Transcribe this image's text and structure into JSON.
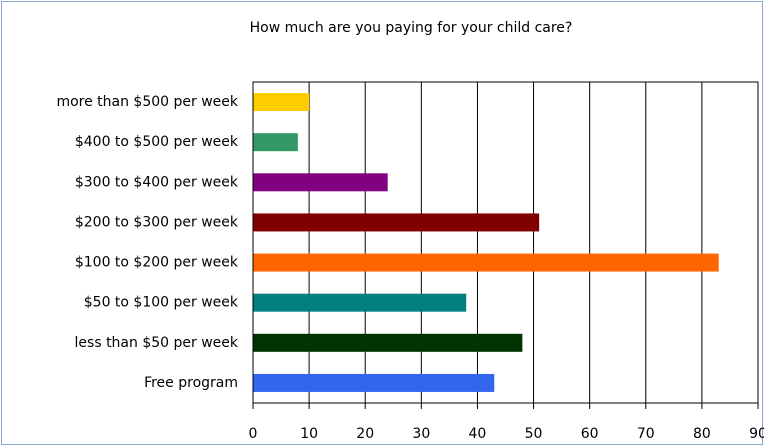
{
  "chart_data": {
    "type": "bar",
    "orientation": "horizontal",
    "title": "How much are you paying for your child care?",
    "categories": [
      "Free program",
      "less than $50 per week",
      "$50 to $100 per week",
      "$100 to $200 per week",
      "$200 to $300 per week",
      "$300 to $400 per week",
      "$400 to $500 per week",
      "more than $500 per week"
    ],
    "values": [
      43,
      48,
      38,
      83,
      51,
      24,
      8,
      10
    ],
    "colors": [
      "#3366ee",
      "#003300",
      "#008080",
      "#ff6600",
      "#800000",
      "#800080",
      "#339966",
      "#ffcc00"
    ],
    "xlim": [
      0,
      90
    ],
    "xticks": [
      0,
      10,
      20,
      30,
      40,
      50,
      60,
      70,
      80,
      90
    ],
    "grid": true
  }
}
